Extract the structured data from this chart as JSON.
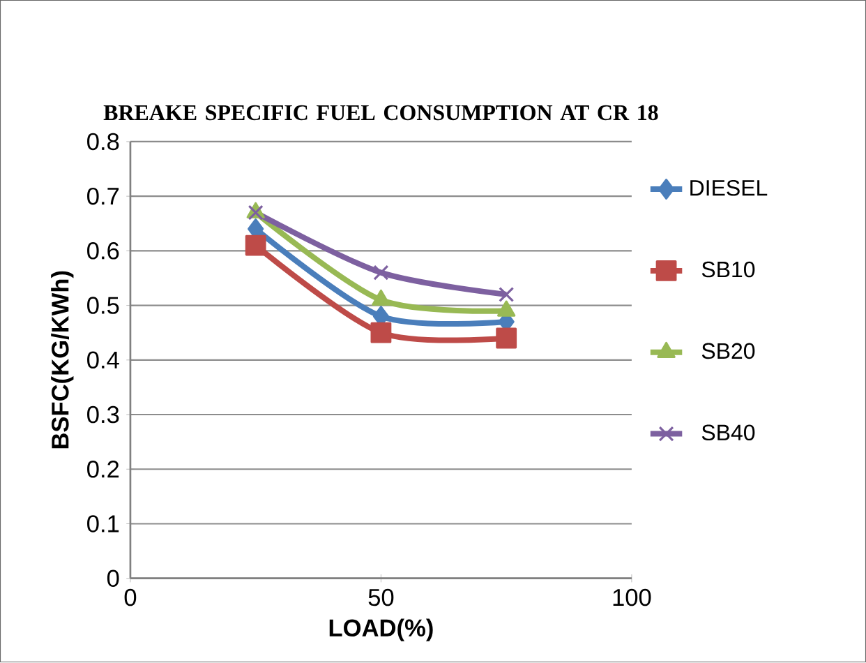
{
  "chart_data": {
    "type": "line",
    "title": "BREAKE SPECIFIC FUEL CONSUMPTION AT CR 18",
    "xlabel": "LOAD(%)",
    "ylabel": "BSFC(KG/KWh)",
    "x": [
      25,
      50,
      75
    ],
    "series": [
      {
        "name": "DIESEL",
        "color": "#4a7ebb",
        "marker": "diamond",
        "values": [
          0.64,
          0.48,
          0.47
        ]
      },
      {
        "name": "SB10",
        "color": "#be4b48",
        "marker": "square",
        "values": [
          0.61,
          0.45,
          0.44
        ]
      },
      {
        "name": "SB20",
        "color": "#98b954",
        "marker": "triangle",
        "values": [
          0.67,
          0.51,
          0.49
        ]
      },
      {
        "name": "SB40",
        "color": "#7d60a0",
        "marker": "cross",
        "values": [
          0.67,
          0.56,
          0.52
        ]
      }
    ],
    "xlim": [
      0,
      100
    ],
    "xticks": [
      0,
      50,
      100
    ],
    "ylim": [
      0,
      0.8
    ],
    "yticks": [
      0,
      0.1,
      0.2,
      0.3,
      0.4,
      0.5,
      0.6,
      0.7,
      0.8
    ],
    "grid": "y",
    "legend": "right"
  }
}
